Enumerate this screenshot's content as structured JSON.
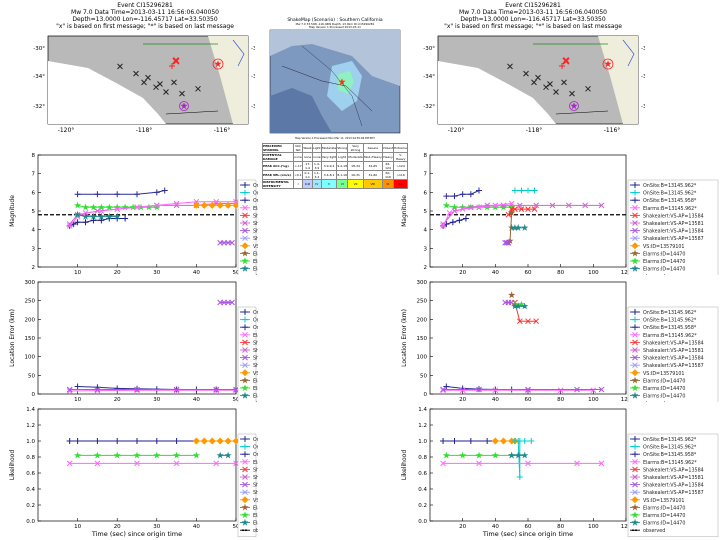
{
  "header": {
    "title": "Event CI15296281",
    "line2": "Mw 7.0 Data Time=2013-03-11 16:56:06.040050",
    "line3": "Depth=13.0000 Lon=-116.45717 Lat=33.50350",
    "line4": "\"x\" is based on first message; \"*\" is based on last message"
  },
  "shakemap": {
    "title": "ShakeMap (Scenario) : Southern California",
    "subtitle": "Mw 7.0 33.50N -116.46W Depth: 13.0km ID:ci15296281",
    "subtitle2": "Map Version 1 Processed 2013-03-11",
    "footer": "Map Version 1 Processed Mon Mar 11, 2013 04:55:06 PM PDT",
    "scale_rows": [
      [
        "PERCEIVED SHAKING",
        "Not felt",
        "Weak",
        "Light",
        "Moderate",
        "Strong",
        "Very strong",
        "Severe",
        "Violent",
        "Extreme"
      ],
      [
        "POTENTIAL DAMAGE",
        "none",
        "none",
        "none",
        "Very light",
        "Light",
        "Moderate",
        "Mod./Heavy",
        "Heavy",
        "V. Heavy"
      ],
      [
        "PEAK ACC.(%g)",
        "<.17",
        ".17-1.4",
        "1.4-3.9",
        "3.9-9.2",
        "9.2-18",
        "18-34",
        "34-65",
        "65-124",
        ">124"
      ],
      [
        "PEAK VEL.(cm/s)",
        "<0.1",
        "0.1-1.1",
        "1.1-3.4",
        "3.4-8.1",
        "8.1-16",
        "16-31",
        "31-60",
        "60-116",
        ">116"
      ],
      [
        "INSTRUMENTAL INTENSITY",
        "I",
        "II-III",
        "IV",
        "V",
        "VI",
        "VII",
        "VIII",
        "IX",
        "X+"
      ]
    ],
    "scale_colors": [
      "#ffffff",
      "#bfccff",
      "#a0e6ff",
      "#80ffff",
      "#7aff93",
      "#ffff00",
      "#ffc800",
      "#ff9100",
      "#ff0000",
      "#c80000"
    ]
  },
  "map_labels": {
    "xticks": [
      "-120°",
      "-118°",
      "-116°"
    ],
    "yticks": [
      "-30°",
      "-34°",
      "-32°"
    ]
  },
  "legend": [
    {
      "label": "OnSite:B=13145.962*",
      "color": "#1f1f8f",
      "marker": "+"
    },
    {
      "label": "OnSite:B=13145.962*",
      "color": "#00cccc",
      "marker": "+"
    },
    {
      "label": "OnSite:B=13145.958*",
      "color": "#2b2b99",
      "marker": "+"
    },
    {
      "label": "Elarms:B=13145.962*",
      "color": "#ff66ff",
      "marker": "x"
    },
    {
      "label": "Shakealert:VS-AP=13584",
      "color": "#ff3333",
      "marker": "x"
    },
    {
      "label": "Shakealert:VS-AP=13581",
      "color": "#cc66cc",
      "marker": "x"
    },
    {
      "label": "Shakealert:VS-AP=13584",
      "color": "#aa55dd",
      "marker": "x"
    },
    {
      "label": "Shakealert:VS-AP=13587",
      "color": "#9999ff",
      "marker": "x"
    },
    {
      "label": "VS:ID=13579101",
      "color": "#ff9900",
      "marker": "d"
    },
    {
      "label": "Elarms:ID=14470",
      "color": "#996633",
      "marker": "*"
    },
    {
      "label": "Elarms:ID=14470",
      "color": "#33dd33",
      "marker": "*"
    },
    {
      "label": "Elarms:ID=14470",
      "color": "#228888",
      "marker": "*"
    },
    {
      "label": "observed",
      "color": "#000000",
      "marker": "dash"
    }
  ],
  "axis_labels": {
    "magnitude": "Magnitude",
    "location_error": "Location Error (km)",
    "likelihood": "Likelihood",
    "time": "Time (sec) since origin time"
  },
  "chart_data": [
    {
      "type": "line",
      "panel": "left",
      "title": "Magnitude",
      "ylabel": "Magnitude",
      "xlim": [
        0,
        50
      ],
      "ylim": [
        2,
        8
      ],
      "xticks": [
        10,
        20,
        30,
        40,
        50
      ],
      "yticks": [
        2,
        3,
        4,
        5,
        6,
        7,
        8
      ],
      "observed": 4.8,
      "series": [
        {
          "name": "dark blue",
          "color": "#1f1f8f",
          "x": [
            8,
            9,
            10,
            12,
            14,
            16,
            18,
            20,
            22
          ],
          "y": [
            4.2,
            4.3,
            4.4,
            4.4,
            4.5,
            4.5,
            4.6,
            4.6,
            4.6
          ]
        },
        {
          "name": "navy",
          "color": "#2b2b99",
          "x": [
            10,
            15,
            20,
            25,
            30,
            32
          ],
          "y": [
            5.9,
            5.9,
            5.9,
            5.9,
            6.0,
            6.1
          ]
        },
        {
          "name": "green",
          "color": "#33dd33",
          "x": [
            10,
            12,
            14,
            16,
            18,
            20,
            22,
            24,
            26,
            28,
            30
          ],
          "y": [
            5.3,
            5.2,
            5.2,
            5.2,
            5.2,
            5.2,
            5.2,
            5.2,
            5.2,
            5.2,
            5.2
          ]
        },
        {
          "name": "magenta",
          "color": "#cc66cc",
          "x": [
            8,
            10,
            15,
            20,
            25,
            30,
            35,
            40,
            45,
            50
          ],
          "y": [
            4.3,
            4.8,
            5.0,
            5.1,
            5.2,
            5.3,
            5.3,
            5.3,
            5.4,
            5.4
          ]
        },
        {
          "name": "pink",
          "color": "#ff66ff",
          "x": [
            8,
            10,
            12,
            16,
            20,
            25,
            30,
            35,
            40,
            45,
            50
          ],
          "y": [
            4.2,
            4.7,
            4.9,
            5.0,
            5.1,
            5.2,
            5.3,
            5.4,
            5.5,
            5.5,
            5.5
          ]
        },
        {
          "name": "teal",
          "color": "#228888",
          "x": [
            10,
            12,
            14,
            16,
            18,
            20
          ],
          "y": [
            4.8,
            4.7,
            4.7,
            4.7,
            4.7,
            4.7
          ]
        },
        {
          "name": "orange",
          "color": "#ff9900",
          "x": [
            40,
            42,
            44,
            46,
            48,
            50
          ],
          "y": [
            5.3,
            5.3,
            5.3,
            5.3,
            5.3,
            5.3
          ]
        },
        {
          "name": "purple tail",
          "color": "#aa55dd",
          "x": [
            46,
            47,
            48,
            49
          ],
          "y": [
            3.3,
            3.3,
            3.3,
            3.3
          ]
        }
      ]
    },
    {
      "type": "line",
      "panel": "right",
      "title": "Magnitude",
      "ylabel": "Magnitude",
      "xlim": [
        0,
        120
      ],
      "ylim": [
        2,
        8
      ],
      "xticks": [
        20,
        40,
        60,
        80,
        100,
        120
      ],
      "yticks": [
        2,
        3,
        4,
        5,
        6,
        7,
        8
      ],
      "observed": 4.8,
      "series": [
        {
          "name": "dark blue",
          "color": "#1f1f8f",
          "x": [
            8,
            10,
            14,
            18,
            22
          ],
          "y": [
            4.2,
            4.3,
            4.4,
            4.5,
            4.6
          ]
        },
        {
          "name": "navy",
          "color": "#2b2b99",
          "x": [
            10,
            15,
            20,
            25,
            30
          ],
          "y": [
            5.8,
            5.8,
            5.9,
            5.9,
            6.1
          ]
        },
        {
          "name": "green",
          "color": "#33dd33",
          "x": [
            10,
            15,
            20,
            25,
            30,
            35,
            40,
            45,
            50
          ],
          "y": [
            5.3,
            5.2,
            5.2,
            5.2,
            5.2,
            5.2,
            5.2,
            5.2,
            5.2
          ]
        },
        {
          "name": "magenta",
          "color": "#cc66cc",
          "x": [
            8,
            15,
            25,
            35,
            45,
            55,
            65,
            75,
            85,
            95,
            105
          ],
          "y": [
            4.3,
            5.0,
            5.2,
            5.3,
            5.3,
            5.3,
            5.3,
            5.3,
            5.3,
            5.3,
            5.3
          ]
        },
        {
          "name": "pink",
          "color": "#ff66ff",
          "x": [
            8,
            12,
            20,
            30,
            40,
            50
          ],
          "y": [
            4.2,
            4.9,
            5.1,
            5.2,
            5.3,
            5.4
          ]
        },
        {
          "name": "cyan",
          "color": "#00cccc",
          "x": [
            52,
            56,
            60,
            64
          ],
          "y": [
            6.1,
            6.1,
            6.1,
            6.1
          ]
        },
        {
          "name": "red",
          "color": "#ff3333",
          "x": [
            48,
            50,
            52,
            56,
            60,
            64
          ],
          "y": [
            4.8,
            5.1,
            5.1,
            5.1,
            5.1,
            5.1
          ]
        },
        {
          "name": "teal",
          "color": "#228888",
          "x": [
            50,
            52,
            54,
            58
          ],
          "y": [
            4.1,
            4.1,
            4.1,
            4.1
          ]
        },
        {
          "name": "brown",
          "color": "#996633",
          "x": [
            48,
            49,
            50
          ],
          "y": [
            3.3,
            3.4,
            4.9
          ]
        },
        {
          "name": "purple",
          "color": "#aa55dd",
          "x": [
            46,
            47,
            48
          ],
          "y": [
            3.3,
            3.3,
            3.3
          ]
        }
      ]
    },
    {
      "type": "line",
      "panel": "left",
      "title": "Location Error",
      "ylabel": "Location Error (km)",
      "xlim": [
        0,
        50
      ],
      "ylim": [
        0,
        300
      ],
      "xticks": [
        10,
        20,
        30,
        40,
        50
      ],
      "yticks": [
        0,
        50,
        100,
        150,
        200,
        250,
        300
      ],
      "series": [
        {
          "name": "navy",
          "color": "#2b2b99",
          "x": [
            10,
            15,
            20,
            25,
            30,
            35,
            40,
            45
          ],
          "y": [
            20,
            18,
            15,
            14,
            13,
            12,
            12,
            12
          ]
        },
        {
          "name": "pink",
          "color": "#ff66ff",
          "x": [
            8,
            15,
            25,
            35,
            45,
            50
          ],
          "y": [
            8,
            9,
            10,
            10,
            10,
            10
          ]
        },
        {
          "name": "purple",
          "color": "#aa55dd",
          "x": [
            8,
            15,
            25,
            35,
            45,
            50
          ],
          "y": [
            12,
            12,
            12,
            12,
            12,
            12
          ]
        },
        {
          "name": "purple tail",
          "color": "#aa55dd",
          "x": [
            46,
            47,
            48,
            49
          ],
          "y": [
            245,
            245,
            245,
            245
          ]
        }
      ]
    },
    {
      "type": "line",
      "panel": "right",
      "title": "Location Error",
      "ylabel": "Location Error (km)",
      "xlim": [
        0,
        120
      ],
      "ylim": [
        0,
        300
      ],
      "xticks": [
        20,
        40,
        60,
        80,
        100,
        120
      ],
      "yticks": [
        0,
        50,
        100,
        150,
        200,
        250,
        300
      ],
      "series": [
        {
          "name": "navy",
          "color": "#2b2b99",
          "x": [
            10,
            20,
            30,
            40,
            50
          ],
          "y": [
            20,
            15,
            13,
            12,
            12
          ]
        },
        {
          "name": "pink",
          "color": "#ff66ff",
          "x": [
            8,
            20,
            40,
            60,
            80,
            100
          ],
          "y": [
            10,
            10,
            10,
            10,
            10,
            10
          ]
        },
        {
          "name": "purple",
          "color": "#aa55dd",
          "x": [
            8,
            30,
            60,
            90,
            105
          ],
          "y": [
            12,
            12,
            12,
            12,
            12
          ]
        },
        {
          "name": "red",
          "color": "#ff3333",
          "x": [
            52,
            55,
            60,
            65
          ],
          "y": [
            245,
            195,
            195,
            195
          ]
        },
        {
          "name": "brown",
          "color": "#996633",
          "x": [
            50
          ],
          "y": [
            265
          ]
        },
        {
          "name": "green",
          "color": "#33dd33",
          "x": [
            52,
            56
          ],
          "y": [
            240,
            240
          ]
        },
        {
          "name": "teal",
          "color": "#228888",
          "x": [
            52,
            54,
            58
          ],
          "y": [
            235,
            235,
            235
          ]
        },
        {
          "name": "purple tail",
          "color": "#aa55dd",
          "x": [
            46,
            48,
            50
          ],
          "y": [
            245,
            245,
            245
          ]
        }
      ]
    },
    {
      "type": "line",
      "panel": "left",
      "title": "Likelihood",
      "ylabel": "Likelihood",
      "xlim": [
        0,
        50
      ],
      "ylim": [
        0,
        1.4
      ],
      "xlabel": "Time (sec) since origin time",
      "xticks": [
        10,
        20,
        30,
        40,
        50
      ],
      "yticks": [
        0,
        0.2,
        0.4,
        0.6,
        0.8,
        1.0,
        1.2,
        1.4
      ],
      "series": [
        {
          "name": "dark blue",
          "color": "#1f1f8f",
          "x": [
            8,
            10,
            15,
            20,
            25,
            30,
            35,
            40
          ],
          "y": [
            1.0,
            1.0,
            1.0,
            1.0,
            1.0,
            1.0,
            1.0,
            1.0
          ]
        },
        {
          "name": "orange",
          "color": "#ff9900",
          "x": [
            40,
            42,
            44,
            46,
            48,
            50
          ],
          "y": [
            1.0,
            1.0,
            1.0,
            1.0,
            1.0,
            1.0
          ]
        },
        {
          "name": "green",
          "color": "#33dd33",
          "x": [
            10,
            15,
            20,
            25,
            30,
            35,
            40
          ],
          "y": [
            0.82,
            0.82,
            0.82,
            0.82,
            0.82,
            0.82,
            0.82
          ]
        },
        {
          "name": "magenta",
          "color": "#ff66ff",
          "x": [
            8,
            15,
            25,
            35,
            45,
            50
          ],
          "y": [
            0.72,
            0.72,
            0.72,
            0.72,
            0.72,
            0.72
          ]
        },
        {
          "name": "teal",
          "color": "#228888",
          "x": [
            46,
            48
          ],
          "y": [
            0.82,
            0.82
          ]
        }
      ]
    },
    {
      "type": "line",
      "panel": "right",
      "title": "Likelihood",
      "ylabel": "Likelihood",
      "xlim": [
        0,
        120
      ],
      "ylim": [
        0,
        1.4
      ],
      "xlabel": "Time (sec) since origin time",
      "xticks": [
        20,
        40,
        60,
        80,
        100,
        120
      ],
      "yticks": [
        0,
        0.2,
        0.4,
        0.6,
        0.8,
        1.0,
        1.2,
        1.4
      ],
      "series": [
        {
          "name": "dark blue",
          "color": "#1f1f8f",
          "x": [
            8,
            15,
            25,
            35,
            45
          ],
          "y": [
            1.0,
            1.0,
            1.0,
            1.0,
            1.0
          ]
        },
        {
          "name": "orange",
          "color": "#ff9900",
          "x": [
            40,
            45,
            50,
            52
          ],
          "y": [
            1.0,
            1.0,
            1.0,
            1.0
          ]
        },
        {
          "name": "cyan",
          "color": "#00cccc",
          "x": [
            52,
            54,
            55,
            55,
            58,
            62
          ],
          "y": [
            1.0,
            1.0,
            0.55,
            1.0,
            1.0,
            1.0
          ]
        },
        {
          "name": "green",
          "color": "#33dd33",
          "x": [
            10,
            20,
            30,
            40,
            50
          ],
          "y": [
            0.82,
            0.82,
            0.82,
            0.82,
            0.82
          ]
        },
        {
          "name": "magenta",
          "color": "#ff66ff",
          "x": [
            8,
            30,
            60,
            90,
            105
          ],
          "y": [
            0.72,
            0.72,
            0.72,
            0.72,
            0.72
          ]
        },
        {
          "name": "teal",
          "color": "#228888",
          "x": [
            50,
            54,
            58
          ],
          "y": [
            0.82,
            0.82,
            0.82
          ]
        }
      ]
    }
  ]
}
